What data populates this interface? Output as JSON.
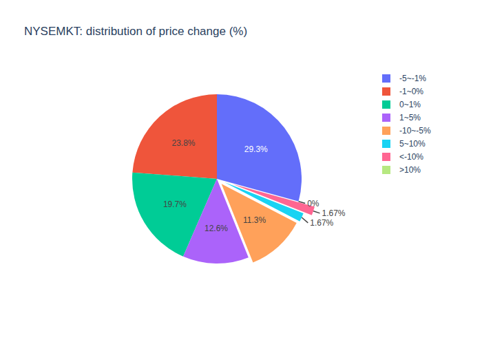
{
  "chart_data": {
    "type": "pie",
    "title": "NYSEMKT: distribution of price change (%)",
    "categories": [
      "-5~-1%",
      "-1~0%",
      "0~1%",
      "1~5%",
      "-10~-5%",
      "5~10%",
      "<-10%",
      ">10%"
    ],
    "values": [
      29.3,
      23.8,
      19.7,
      12.6,
      11.3,
      1.67,
      1.67,
      0
    ],
    "value_labels": [
      "29.3%",
      "23.8%",
      "19.7%",
      "12.6%",
      "11.3%",
      "1.67%",
      "1.67%",
      "0%"
    ],
    "colors": [
      "#636efa",
      "#EF553B",
      "#00cc96",
      "#ab63fa",
      "#FFA15A",
      "#19d3f3",
      "#FF6692",
      "#B6E880"
    ],
    "data_labels": true,
    "legend": "right"
  }
}
